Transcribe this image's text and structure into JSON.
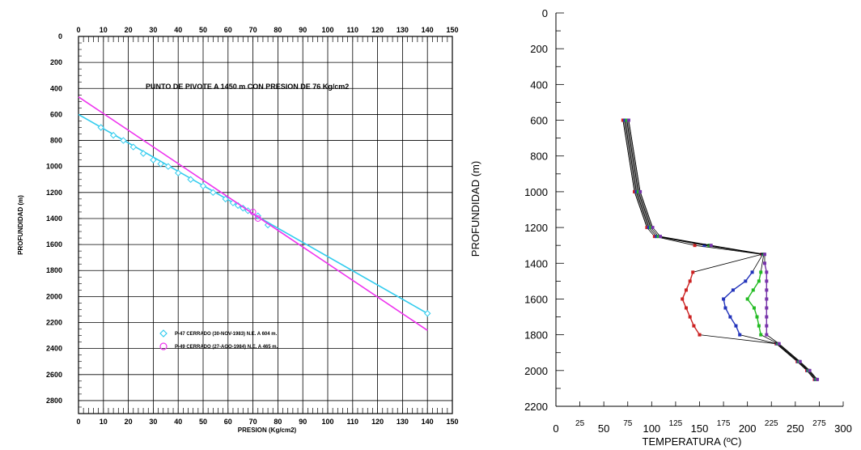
{
  "chart_data": [
    {
      "type": "line",
      "xlabel": "PRESION (Kg/cm2)",
      "ylabel": "PROFUNDIDAD (m)",
      "annotation": "PUNTO DE PIVOTE A 1450 m CON PRESION DE 76 Kg/cm2",
      "xlim": [
        0,
        150
      ],
      "ylim": [
        2900,
        0
      ],
      "x_ticks": [
        0,
        10,
        20,
        30,
        40,
        50,
        60,
        70,
        80,
        90,
        100,
        110,
        120,
        130,
        140,
        150
      ],
      "y_ticks": [
        0,
        200,
        400,
        600,
        800,
        1000,
        1200,
        1400,
        1600,
        1800,
        2000,
        2200,
        2400,
        2600,
        2800
      ],
      "grid": true,
      "legend_position": "lower-left",
      "series": [
        {
          "name": "P-47 CERRADO (30-NOV-1983) N.E. A 604 m.",
          "color": "#33ccee",
          "marker": "diamond",
          "line": {
            "x": [
              0,
              140
            ],
            "y": [
              600,
              2130
            ]
          },
          "points": {
            "x": [
              9,
              14,
              18,
              22,
              26,
              30,
              33,
              36,
              40,
              45,
              50,
              54,
              59,
              62,
              64,
              66,
              68,
              72,
              76,
              140
            ],
            "y": [
              700,
              760,
              800,
              850,
              900,
              950,
              980,
              1000,
              1050,
              1100,
              1150,
              1200,
              1250,
              1280,
              1300,
              1320,
              1340,
              1380,
              1450,
              2130
            ]
          }
        },
        {
          "name": "P-49 CERRADO (27-AGO-1984) N.E. A 465 m.",
          "color": "#ee33ee",
          "marker": "circle",
          "line": {
            "x": [
              0,
              140
            ],
            "y": [
              465,
              2260
            ]
          },
          "points": {
            "x": [
              70,
              72
            ],
            "y": [
              1350,
              1400
            ]
          }
        }
      ]
    },
    {
      "type": "line",
      "xlabel": "TEMPERATURA (ºC)",
      "ylabel": "PROFUNDIDAD (m)",
      "xlim": [
        0,
        300
      ],
      "ylim": [
        2200,
        0
      ],
      "x_ticks": [
        0,
        25,
        50,
        75,
        100,
        125,
        150,
        175,
        200,
        225,
        250,
        275,
        300
      ],
      "y_ticks": [
        0,
        200,
        400,
        600,
        800,
        1000,
        1200,
        1400,
        1600,
        1800,
        2000,
        2200
      ],
      "grid": false,
      "series": [
        {
          "color": "#cc2222",
          "depth": [
            600,
            1000,
            1200,
            1250,
            1300,
            1350,
            1450,
            1500,
            1550,
            1600,
            1650,
            1700,
            1750,
            1800,
            1850,
            1950,
            2000,
            2050
          ],
          "temp": [
            70,
            82,
            95,
            103,
            145,
            215,
            143,
            140,
            136,
            132,
            136,
            140,
            144,
            150,
            230,
            252,
            262,
            270
          ]
        },
        {
          "color": "#2233bb",
          "depth": [
            600,
            1000,
            1200,
            1250,
            1300,
            1350,
            1450,
            1500,
            1550,
            1600,
            1650,
            1700,
            1750,
            1800,
            1850,
            1950,
            2000,
            2050
          ],
          "temp": [
            72,
            84,
            97,
            105,
            155,
            216,
            205,
            198,
            185,
            175,
            177,
            182,
            188,
            192,
            231,
            253,
            263,
            271
          ]
        },
        {
          "color": "#22bb22",
          "depth": [
            600,
            1000,
            1200,
            1250,
            1300,
            1350,
            1450,
            1500,
            1550,
            1600,
            1650,
            1700,
            1750,
            1800,
            1850,
            1950,
            2000,
            2050
          ],
          "temp": [
            74,
            86,
            99,
            107,
            160,
            217,
            214,
            212,
            206,
            200,
            207,
            210,
            212,
            214,
            232,
            254,
            264,
            272
          ]
        },
        {
          "color": "#7733aa",
          "depth": [
            600,
            1000,
            1200,
            1250,
            1300,
            1350,
            1400,
            1450,
            1500,
            1550,
            1600,
            1650,
            1700,
            1750,
            1800,
            1850,
            1950,
            2000,
            2050
          ],
          "temp": [
            76,
            88,
            101,
            109,
            162,
            218,
            218,
            220,
            220,
            220,
            220,
            220,
            220,
            220,
            220,
            233,
            255,
            265,
            273
          ]
        }
      ]
    }
  ]
}
